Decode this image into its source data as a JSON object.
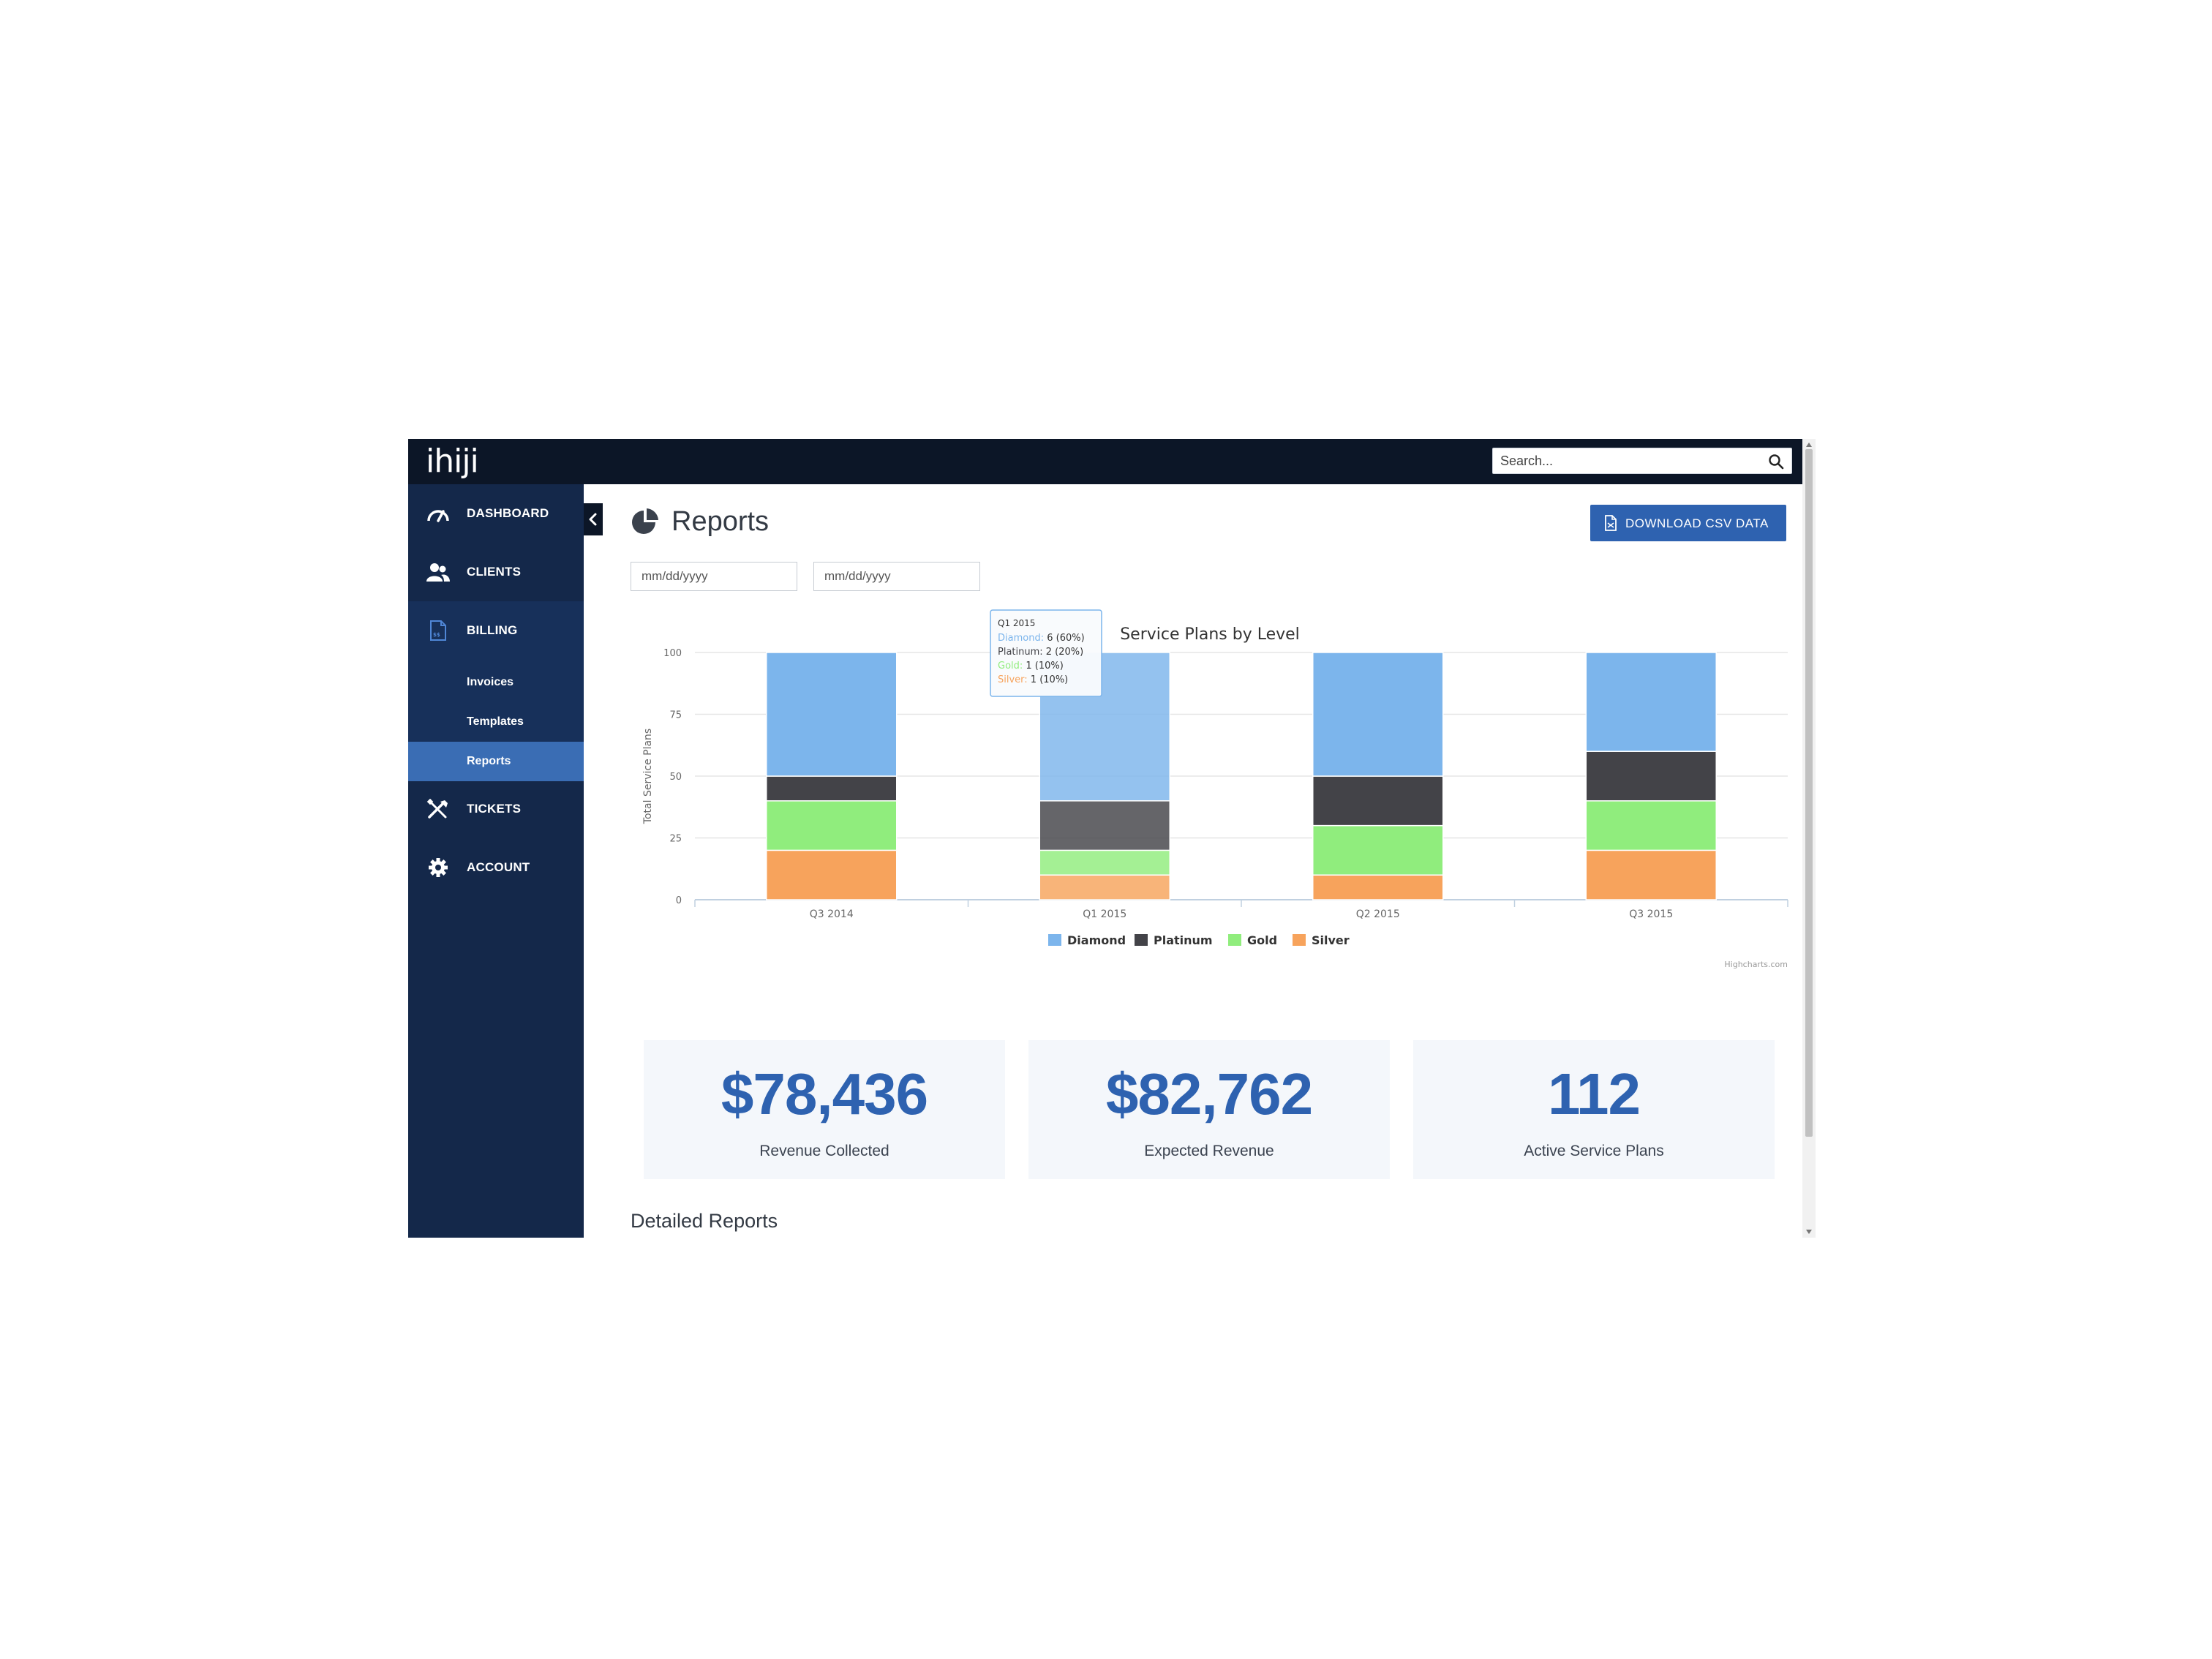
{
  "topbar": {
    "logo_text": "ihiji",
    "search": {
      "placeholder": "Search...",
      "icon": "search-icon"
    }
  },
  "sidebar": {
    "items": [
      {
        "label": "DASHBOARD",
        "icon": "speedometer-icon"
      },
      {
        "label": "CLIENTS",
        "icon": "users-icon"
      },
      {
        "label": "BILLING",
        "icon": "invoice-icon"
      },
      {
        "label": "TICKETS",
        "icon": "tools-icon"
      },
      {
        "label": "ACCOUNT",
        "icon": "gear-icon"
      }
    ],
    "billing_sub": [
      {
        "label": "Invoices"
      },
      {
        "label": "Templates"
      },
      {
        "label": "Reports",
        "active": true
      }
    ],
    "collapse_icon": "chevron-left-icon"
  },
  "main": {
    "title": "Reports",
    "title_icon": "pie-chart-icon",
    "download_label": "DOWNLOAD CSV DATA",
    "download_icon": "document-icon",
    "date_from_placeholder": "mm/dd/yyyy",
    "date_to_placeholder": "mm/dd/yyyy",
    "stats": [
      {
        "value": "$78,436",
        "label": "Revenue Collected"
      },
      {
        "value": "$82,762",
        "label": "Expected Revenue"
      },
      {
        "value": "112",
        "label": "Active Service Plans"
      }
    ],
    "detailed_title": "Detailed Reports"
  },
  "chart_data": {
    "type": "bar",
    "stacked": true,
    "title": "Service Plans by Level",
    "ylabel": "Total Service Plans",
    "xlabel": "",
    "ylim": [
      0,
      100
    ],
    "yticks": [
      "0",
      "25",
      "50",
      "75",
      "100"
    ],
    "categories": [
      "Q3 2014",
      "Q1 2015",
      "Q2 2015",
      "Q3 2015"
    ],
    "series": [
      {
        "name": "Silver",
        "color": "#f7a35c",
        "values": [
          20,
          10,
          10,
          20
        ]
      },
      {
        "name": "Gold",
        "color": "#90ed7d",
        "values": [
          20,
          10,
          20,
          20
        ]
      },
      {
        "name": "Platinum",
        "color": "#434348",
        "values": [
          10,
          20,
          20,
          20
        ]
      },
      {
        "name": "Diamond",
        "color": "#7cb5ec",
        "values": [
          50,
          60,
          50,
          40
        ]
      }
    ],
    "legend_order": [
      "Diamond",
      "Platinum",
      "Gold",
      "Silver"
    ],
    "legend_position": "bottom-center",
    "highlighted_category": "Q1 2015",
    "tooltip": {
      "header": "Q1 2015",
      "rows": [
        {
          "name": "Diamond",
          "value": "6 (60%)",
          "color": "#7cb5ec"
        },
        {
          "name": "Platinum",
          "value": "2 (20%)",
          "color": "#434348"
        },
        {
          "name": "Gold",
          "value": "1 (10%)",
          "color": "#90ed7d"
        },
        {
          "name": "Silver",
          "value": "1 (10%)",
          "color": "#f7a35c"
        }
      ]
    },
    "credits": "Highcharts.com",
    "grid": true
  }
}
